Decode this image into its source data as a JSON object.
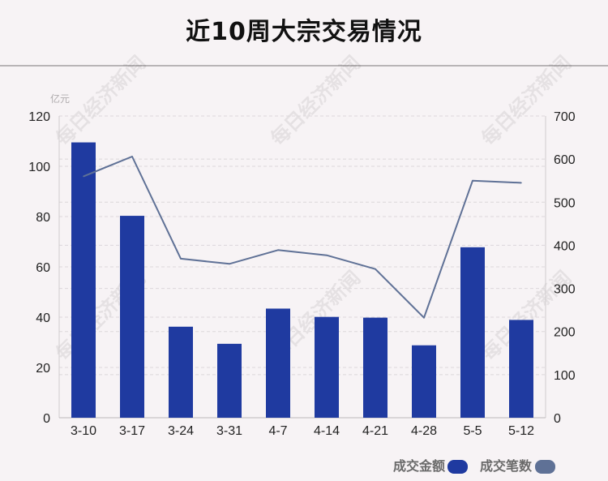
{
  "colors": {
    "background": "#f7f3f5",
    "bar": "#1f3aa0",
    "line": "#5f7196",
    "grid": "#dcd7da",
    "axis_text": "#222222",
    "legend_text": "#6a6a6a"
  },
  "watermark": {
    "text": "每日经济新闻"
  },
  "chart_data": {
    "type": "bar",
    "title": "近10周大宗交易情况",
    "y_left_unit": "亿元",
    "categories": [
      "3-10",
      "3-17",
      "3-24",
      "3-31",
      "4-7",
      "4-14",
      "4-21",
      "4-28",
      "5-5",
      "5-12"
    ],
    "series": [
      {
        "name": "成交金额",
        "type": "bar",
        "axis": "left",
        "values": [
          109.5,
          80.3,
          36.2,
          29.4,
          43.4,
          40.1,
          39.8,
          28.8,
          67.8,
          38.9
        ]
      },
      {
        "name": "成交笔数",
        "type": "line",
        "axis": "right",
        "values": [
          560,
          606,
          369,
          357,
          389,
          377,
          345,
          232,
          550,
          545
        ]
      }
    ],
    "y_left": {
      "ylim": [
        0,
        120
      ],
      "ticks": [
        0,
        20,
        40,
        60,
        80,
        100,
        120
      ]
    },
    "y_right": {
      "ylim": [
        0,
        700
      ],
      "ticks": [
        0,
        100,
        200,
        300,
        400,
        500,
        600,
        700
      ]
    },
    "grid": true,
    "legend_position": "bottom-right"
  }
}
